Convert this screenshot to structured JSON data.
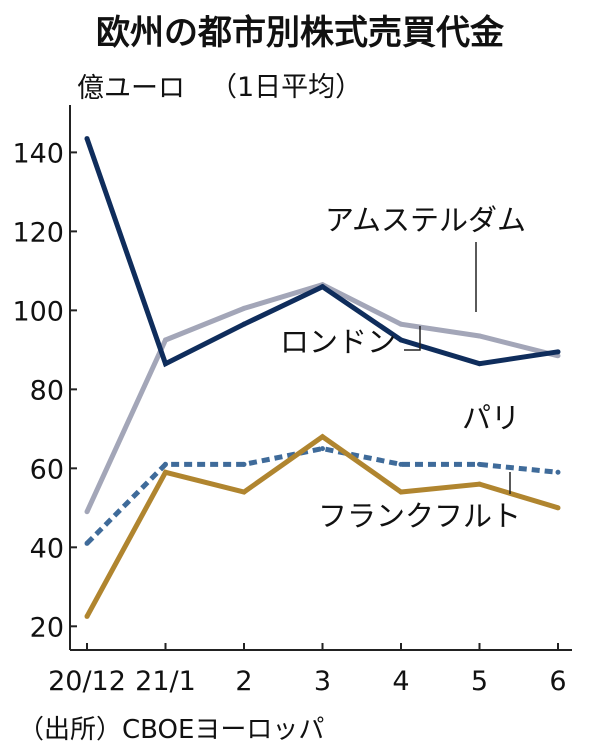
{
  "chart_data": {
    "type": "line",
    "title": "欧州の都市別株式売買代金",
    "subtitle": "（1日平均）",
    "ylabel": "億ユーロ",
    "source": "（出所）CBOEヨーロッパ",
    "categories": [
      "20/12",
      "21/1",
      "2",
      "3",
      "4",
      "5",
      "6"
    ],
    "ylim": [
      14,
      152
    ],
    "yticks": [
      20,
      40,
      60,
      80,
      100,
      120,
      140
    ],
    "series": [
      {
        "name": "アムステルダム",
        "color": "#a3a6b8",
        "style": "solid",
        "values": [
          49,
          92.5,
          100.5,
          106.5,
          96.5,
          93.5,
          88.5
        ]
      },
      {
        "name": "ロンドン",
        "color": "#0f2d5c",
        "style": "solid",
        "values": [
          143.5,
          86.5,
          96.5,
          106,
          92.5,
          86.5,
          89.5
        ]
      },
      {
        "name": "パリ",
        "color": "#3f6b9a",
        "style": "dashed",
        "values": [
          41,
          61,
          61,
          65,
          61,
          61,
          59
        ]
      },
      {
        "name": "フランクフルト",
        "color": "#b0852f",
        "style": "solid",
        "values": [
          22.5,
          59,
          54,
          68,
          54,
          56,
          50
        ]
      }
    ]
  }
}
